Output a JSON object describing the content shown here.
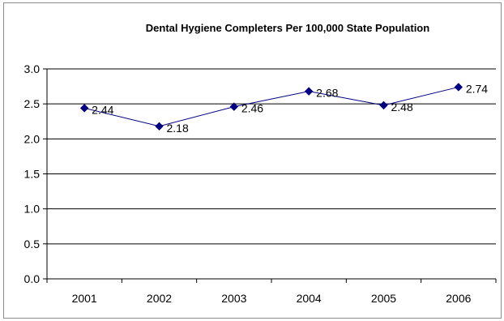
{
  "chart_data": {
    "type": "line",
    "title": "Dental Hygiene Completers Per 100,000 State Population",
    "xlabel": "",
    "ylabel": "",
    "categories": [
      "2001",
      "2002",
      "2003",
      "2004",
      "2005",
      "2006"
    ],
    "series": [
      {
        "values": [
          2.44,
          2.18,
          2.46,
          2.68,
          2.48,
          2.74
        ]
      }
    ],
    "data_labels": [
      "2.44",
      "2.18",
      "2.46",
      "2.68",
      "2.48",
      "2.74"
    ],
    "ylim": [
      0,
      3.0
    ],
    "yticks": [
      "0.0",
      "0.5",
      "1.0",
      "1.5",
      "2.0",
      "2.5",
      "3.0"
    ],
    "grid": true,
    "legend": "none",
    "colors": {
      "series": "#000080",
      "grid": "#000000",
      "axis": "#000000"
    }
  }
}
